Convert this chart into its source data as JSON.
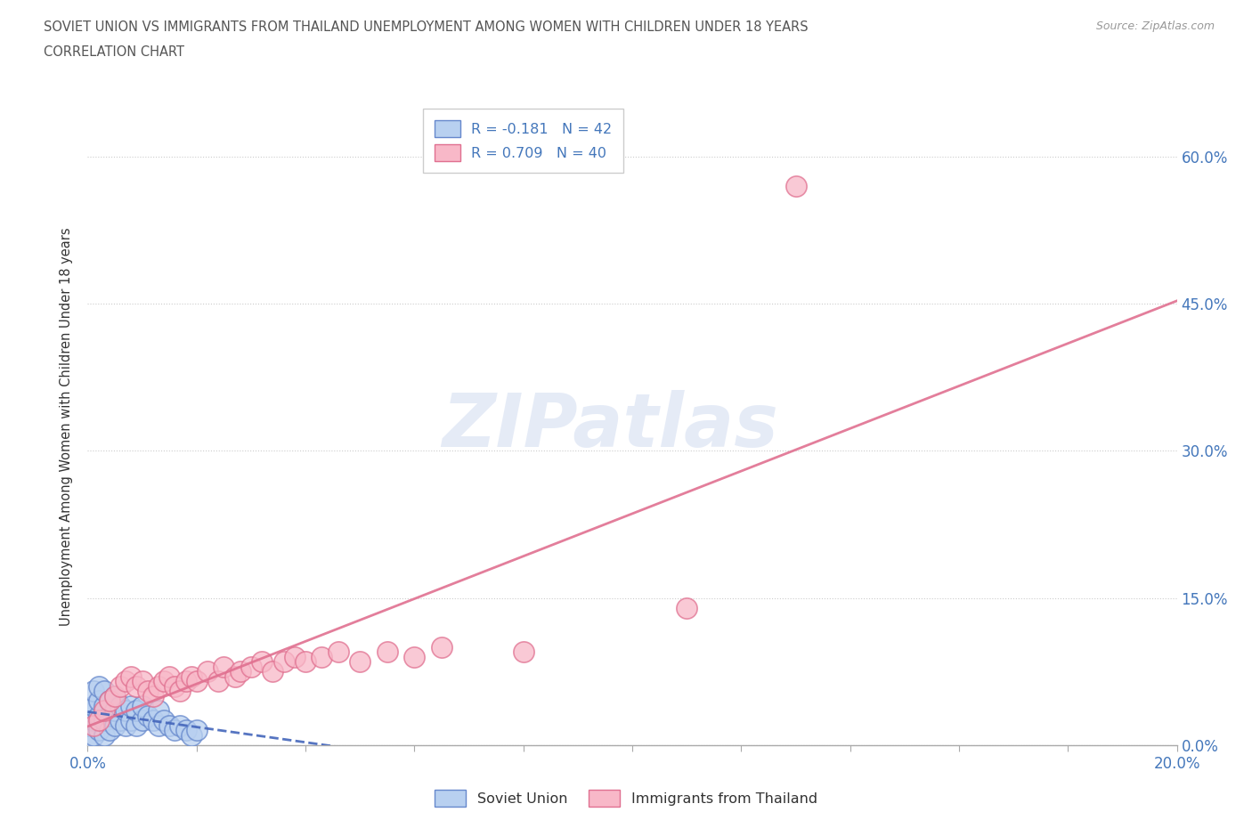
{
  "title_line1": "SOVIET UNION VS IMMIGRANTS FROM THAILAND UNEMPLOYMENT AMONG WOMEN WITH CHILDREN UNDER 18 YEARS",
  "title_line2": "CORRELATION CHART",
  "source_text": "Source: ZipAtlas.com",
  "ylabel": "Unemployment Among Women with Children Under 18 years",
  "xlim": [
    0.0,
    0.2
  ],
  "ylim": [
    0.0,
    0.65
  ],
  "xticks": [
    0.0,
    0.02,
    0.04,
    0.06,
    0.08,
    0.1,
    0.12,
    0.14,
    0.16,
    0.18,
    0.2
  ],
  "ytick_positions": [
    0.0,
    0.15,
    0.3,
    0.45,
    0.6
  ],
  "ytick_labels": [
    "0.0%",
    "15.0%",
    "30.0%",
    "45.0%",
    "60.0%"
  ],
  "soviet_color": "#b8d0f0",
  "soviet_edge_color": "#6688cc",
  "thailand_color": "#f8b8c8",
  "thailand_edge_color": "#e07090",
  "soviet_line_color": "#4466bb",
  "thailand_line_color": "#e07090",
  "R_soviet": -0.181,
  "N_soviet": 42,
  "R_thailand": 0.709,
  "N_thailand": 40,
  "legend_label_soviet": "Soviet Union",
  "legend_label_thailand": "Immigrants from Thailand",
  "watermark_text": "ZIPatlas",
  "title_color": "#555555",
  "tick_label_color": "#4477bb",
  "soviet_x": [
    0.0,
    0.0,
    0.0,
    0.001,
    0.001,
    0.001,
    0.001,
    0.002,
    0.002,
    0.002,
    0.002,
    0.003,
    0.003,
    0.003,
    0.003,
    0.004,
    0.004,
    0.004,
    0.005,
    0.005,
    0.005,
    0.006,
    0.006,
    0.007,
    0.007,
    0.008,
    0.008,
    0.009,
    0.009,
    0.01,
    0.01,
    0.011,
    0.012,
    0.013,
    0.013,
    0.014,
    0.015,
    0.016,
    0.017,
    0.018,
    0.019,
    0.02
  ],
  "soviet_y": [
    0.005,
    0.02,
    0.035,
    0.01,
    0.025,
    0.04,
    0.055,
    0.015,
    0.03,
    0.045,
    0.06,
    0.01,
    0.025,
    0.04,
    0.055,
    0.015,
    0.03,
    0.045,
    0.02,
    0.035,
    0.05,
    0.025,
    0.04,
    0.02,
    0.035,
    0.025,
    0.04,
    0.02,
    0.035,
    0.025,
    0.04,
    0.03,
    0.025,
    0.02,
    0.035,
    0.025,
    0.02,
    0.015,
    0.02,
    0.015,
    0.01,
    0.015
  ],
  "thailand_x": [
    0.001,
    0.002,
    0.003,
    0.004,
    0.005,
    0.006,
    0.007,
    0.008,
    0.009,
    0.01,
    0.011,
    0.012,
    0.013,
    0.014,
    0.015,
    0.016,
    0.017,
    0.018,
    0.019,
    0.02,
    0.022,
    0.024,
    0.025,
    0.027,
    0.028,
    0.03,
    0.032,
    0.034,
    0.036,
    0.038,
    0.04,
    0.043,
    0.046,
    0.05,
    0.055,
    0.06,
    0.065,
    0.08,
    0.11,
    0.13
  ],
  "thailand_y": [
    0.02,
    0.025,
    0.035,
    0.045,
    0.05,
    0.06,
    0.065,
    0.07,
    0.06,
    0.065,
    0.055,
    0.05,
    0.06,
    0.065,
    0.07,
    0.06,
    0.055,
    0.065,
    0.07,
    0.065,
    0.075,
    0.065,
    0.08,
    0.07,
    0.075,
    0.08,
    0.085,
    0.075,
    0.085,
    0.09,
    0.085,
    0.09,
    0.095,
    0.085,
    0.095,
    0.09,
    0.1,
    0.095,
    0.14,
    0.57
  ]
}
